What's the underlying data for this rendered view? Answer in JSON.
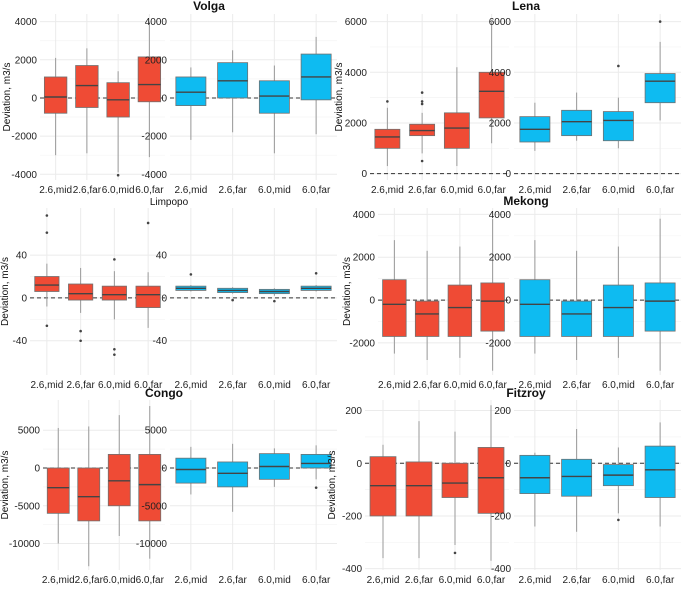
{
  "colors": {
    "rcp26": "#EF4B35",
    "rcp60": "#0EBBF1"
  },
  "chart_data": [
    {
      "type": "boxplot",
      "title": "Volga",
      "ylabel": "Deviation, m3/s",
      "color": "#EF4B35",
      "categories": [
        "2.6,mid",
        "2.6,far",
        "6.0,mid",
        "6.0,far"
      ],
      "ylim": [
        -4300,
        4400
      ],
      "yticks": [
        -4000,
        -2000,
        0,
        2000,
        4000
      ],
      "ytick_labels": [
        "-4000",
        "-2000",
        "0",
        "2000",
        "4000"
      ],
      "boxes": [
        {
          "min": -3000,
          "q1": -800,
          "median": 50,
          "q3": 1100,
          "max": 2100,
          "outliers": []
        },
        {
          "min": -2900,
          "q1": -500,
          "median": 650,
          "q3": 1700,
          "max": 2600,
          "outliers": []
        },
        {
          "min": -3900,
          "q1": -1000,
          "median": -100,
          "q3": 800,
          "max": 1400,
          "outliers": [
            -4050
          ]
        },
        {
          "min": -3100,
          "q1": -200,
          "median": 700,
          "q3": 2150,
          "max": 4000,
          "outliers": []
        }
      ]
    },
    {
      "type": "boxplot",
      "title": "",
      "ylabel": "",
      "color": "#0EBBF1",
      "categories": [
        "2.6,mid",
        "2.6,far",
        "6.0,mid",
        "6.0,far"
      ],
      "ylim": [
        -4300,
        4400
      ],
      "yticks": [
        -4000,
        -2000,
        0,
        2000,
        4000
      ],
      "ytick_labels": [
        "-4000",
        "-2000",
        "0",
        "2000",
        "4000"
      ],
      "boxes": [
        {
          "min": -2200,
          "q1": -400,
          "median": 300,
          "q3": 1100,
          "max": 1600,
          "outliers": []
        },
        {
          "min": -1800,
          "q1": 0,
          "median": 900,
          "q3": 1850,
          "max": 2500,
          "outliers": []
        },
        {
          "min": -2900,
          "q1": -800,
          "median": 100,
          "q3": 900,
          "max": 1700,
          "outliers": []
        },
        {
          "min": -1900,
          "q1": -100,
          "median": 1100,
          "q3": 2300,
          "max": 3200,
          "outliers": []
        }
      ]
    },
    {
      "type": "boxplot",
      "title": "Lena",
      "ylabel": "Deviation, m3/s",
      "color": "#EF4B35",
      "categories": [
        "2.6,mid",
        "2.6,far",
        "6.0,mid",
        "6.0,far"
      ],
      "ylim": [
        -250,
        6300
      ],
      "yticks": [
        0,
        2000,
        4000,
        6000
      ],
      "ytick_labels": [
        "0",
        "2000",
        "4000",
        "6000"
      ],
      "boxes": [
        {
          "min": 300,
          "q1": 1000,
          "median": 1450,
          "q3": 1750,
          "max": 2600,
          "outliers": [
            2850
          ]
        },
        {
          "min": 800,
          "q1": 1500,
          "median": 1700,
          "q3": 1950,
          "max": 2400,
          "outliers": [
            2750,
            2850,
            3200,
            500
          ]
        },
        {
          "min": 300,
          "q1": 1000,
          "median": 1800,
          "q3": 2400,
          "max": 4200,
          "outliers": []
        },
        {
          "min": 1200,
          "q1": 2200,
          "median": 3250,
          "q3": 4000,
          "max": 6000,
          "outliers": []
        }
      ]
    },
    {
      "type": "boxplot",
      "title": "",
      "ylabel": "",
      "color": "#0EBBF1",
      "categories": [
        "2.6,mid",
        "2.6,far",
        "6.0,mid",
        "6.0,far"
      ],
      "ylim": [
        -250,
        6300
      ],
      "yticks": [
        0,
        2000,
        4000,
        6000
      ],
      "ytick_labels": [
        "0",
        "2000",
        "4000",
        "6000"
      ],
      "boxes": [
        {
          "min": 900,
          "q1": 1250,
          "median": 1750,
          "q3": 2250,
          "max": 2800,
          "outliers": []
        },
        {
          "min": 1300,
          "q1": 1500,
          "median": 2050,
          "q3": 2500,
          "max": 3200,
          "outliers": []
        },
        {
          "min": 1000,
          "q1": 1300,
          "median": 2100,
          "q3": 2450,
          "max": 3000,
          "outliers": [
            4250
          ]
        },
        {
          "min": 2100,
          "q1": 2800,
          "median": 3650,
          "q3": 3950,
          "max": 5200,
          "outliers": [
            6000
          ]
        }
      ]
    },
    {
      "type": "boxplot",
      "title": "Limpopo",
      "ylabel": "Deviation, m3/s",
      "color": "#EF4B35",
      "categories": [
        "2.6,mid",
        "2.6,far",
        "6.0,mid",
        "6.0,far"
      ],
      "ylim": [
        -72,
        84
      ],
      "yticks": [
        -40,
        0,
        40
      ],
      "ytick_labels": [
        "-40",
        "0",
        "40"
      ],
      "boxes": [
        {
          "min": -8,
          "q1": 6,
          "median": 12,
          "q3": 20,
          "max": 32,
          "outliers": [
            77,
            61,
            -26
          ]
        },
        {
          "min": -14,
          "q1": -2,
          "median": 4,
          "q3": 13,
          "max": 28,
          "outliers": [
            -31,
            -40
          ]
        },
        {
          "min": -20,
          "q1": -2,
          "median": 3,
          "q3": 11,
          "max": 25,
          "outliers": [
            36,
            -48,
            -53
          ]
        },
        {
          "min": -28,
          "q1": -9,
          "median": 3,
          "q3": 11,
          "max": 24,
          "outliers": [
            70
          ]
        }
      ]
    },
    {
      "type": "boxplot",
      "title": "",
      "ylabel": "",
      "color": "#0EBBF1",
      "categories": [
        "2.6,mid",
        "2.6,far",
        "6.0,mid",
        "6.0,far"
      ],
      "ylim": [
        -72,
        84
      ],
      "yticks": [
        -40,
        0,
        40
      ],
      "ytick_labels": [
        "-40",
        "0",
        "40"
      ],
      "boxes": [
        {
          "min": 6,
          "q1": 7,
          "median": 9,
          "q3": 11,
          "max": 12,
          "outliers": [
            22
          ]
        },
        {
          "min": 4,
          "q1": 5,
          "median": 7,
          "q3": 9,
          "max": 10,
          "outliers": [
            -2
          ]
        },
        {
          "min": 2,
          "q1": 4,
          "median": 6,
          "q3": 8,
          "max": 9,
          "outliers": [
            -3
          ]
        },
        {
          "min": 6,
          "q1": 7,
          "median": 9,
          "q3": 11,
          "max": 12,
          "outliers": [
            23
          ]
        }
      ]
    },
    {
      "type": "boxplot",
      "title": "Mekong",
      "ylabel": "Deviation, m3/s",
      "color": "#EF4B35",
      "categories": [
        "2.6,mid",
        "2.6,far",
        "6.0,mid",
        "6.0,far"
      ],
      "ylim": [
        -3500,
        4300
      ],
      "yticks": [
        -2000,
        0,
        2000,
        4000
      ],
      "ytick_labels": [
        "-2000",
        "0",
        "2000",
        "4000"
      ],
      "boxes": [
        {
          "min": -2500,
          "q1": -1700,
          "median": -200,
          "q3": 950,
          "max": 2800,
          "outliers": []
        },
        {
          "min": -2800,
          "q1": -1700,
          "median": -650,
          "q3": -50,
          "max": 2300,
          "outliers": []
        },
        {
          "min": -2700,
          "q1": -1700,
          "median": -350,
          "q3": 700,
          "max": 2500,
          "outliers": []
        },
        {
          "min": -3300,
          "q1": -1450,
          "median": -50,
          "q3": 800,
          "max": 3800,
          "outliers": []
        }
      ]
    },
    {
      "type": "boxplot",
      "title": "",
      "ylabel": "",
      "color": "#0EBBF1",
      "categories": [
        "2.6,mid",
        "2.6,far",
        "6.0,mid",
        "6.0,far"
      ],
      "ylim": [
        -3500,
        4300
      ],
      "yticks": [
        -2000,
        0,
        2000,
        4000
      ],
      "ytick_labels": [
        "-2000",
        "0",
        "2000",
        "4000"
      ],
      "boxes": [
        {
          "min": -2500,
          "q1": -1700,
          "median": -200,
          "q3": 950,
          "max": 2800,
          "outliers": []
        },
        {
          "min": -2800,
          "q1": -1700,
          "median": -650,
          "q3": -50,
          "max": 2300,
          "outliers": []
        },
        {
          "min": -2700,
          "q1": -1700,
          "median": -350,
          "q3": 700,
          "max": 2500,
          "outliers": []
        },
        {
          "min": -3300,
          "q1": -1450,
          "median": -50,
          "q3": 800,
          "max": 3800,
          "outliers": []
        }
      ]
    },
    {
      "type": "boxplot",
      "title": "Congo",
      "ylabel": "Deviation, m3/s",
      "color": "#EF4B35",
      "categories": [
        "2.6,mid",
        "2.6,far",
        "6.0,mid",
        "6.0,far"
      ],
      "ylim": [
        -13500,
        9000
      ],
      "yticks": [
        -10000,
        -5000,
        0,
        5000
      ],
      "ytick_labels": [
        "-10000",
        "-5000",
        "0",
        "5000"
      ],
      "boxes": [
        {
          "min": -10000,
          "q1": -6000,
          "median": -2600,
          "q3": 0,
          "max": 5300,
          "outliers": []
        },
        {
          "min": -13000,
          "q1": -7000,
          "median": -3800,
          "q3": 0,
          "max": 5500,
          "outliers": []
        },
        {
          "min": -9000,
          "q1": -5000,
          "median": -1700,
          "q3": 1800,
          "max": 7000,
          "outliers": []
        },
        {
          "min": -12000,
          "q1": -7000,
          "median": -2200,
          "q3": 1800,
          "max": 8200,
          "outliers": []
        }
      ]
    },
    {
      "type": "boxplot",
      "title": "",
      "ylabel": "",
      "color": "#0EBBF1",
      "categories": [
        "2.6,mid",
        "2.6,far",
        "6.0,mid",
        "6.0,far"
      ],
      "ylim": [
        -13500,
        9000
      ],
      "yticks": [
        -10000,
        -5000,
        0,
        5000
      ],
      "ytick_labels": [
        "-10000",
        "-5000",
        "0",
        "5000"
      ],
      "boxes": [
        {
          "min": -3500,
          "q1": -2000,
          "median": -200,
          "q3": 1300,
          "max": 2800,
          "outliers": []
        },
        {
          "min": -5800,
          "q1": -2500,
          "median": -700,
          "q3": 800,
          "max": 3200,
          "outliers": []
        },
        {
          "min": -2500,
          "q1": -1500,
          "median": 200,
          "q3": 1900,
          "max": 2600,
          "outliers": []
        },
        {
          "min": -1500,
          "q1": 0,
          "median": 600,
          "q3": 1800,
          "max": 3000,
          "outliers": [
            -2600
          ]
        }
      ]
    },
    {
      "type": "boxplot",
      "title": "Fitzroy",
      "ylabel": "Deviation, m3/s",
      "color": "#EF4B35",
      "categories": [
        "2.6,mid",
        "2.6,far",
        "6.0,mid",
        "6.0,far"
      ],
      "ylim": [
        -405,
        240
      ],
      "yticks": [
        -400,
        -200,
        0,
        200
      ],
      "ytick_labels": [
        "-400",
        "-200",
        "0",
        "200"
      ],
      "boxes": [
        {
          "min": -360,
          "q1": -200,
          "median": -85,
          "q3": 25,
          "max": 70,
          "outliers": []
        },
        {
          "min": -360,
          "q1": -200,
          "median": -85,
          "q3": 5,
          "max": 160,
          "outliers": []
        },
        {
          "min": -310,
          "q1": -130,
          "median": -75,
          "q3": 0,
          "max": 120,
          "outliers": [
            -340
          ]
        },
        {
          "min": -370,
          "q1": -190,
          "median": -55,
          "q3": 60,
          "max": 220,
          "outliers": []
        }
      ]
    },
    {
      "type": "boxplot",
      "title": "",
      "ylabel": "",
      "color": "#0EBBF1",
      "categories": [
        "2.6,mid",
        "2.6,far",
        "6.0,mid",
        "6.0,far"
      ],
      "ylim": [
        -405,
        240
      ],
      "yticks": [
        -400,
        -200,
        0,
        200
      ],
      "ytick_labels": [
        "-400",
        "-200",
        "0",
        "200"
      ],
      "boxes": [
        {
          "min": -240,
          "q1": -115,
          "median": -55,
          "q3": 30,
          "max": 40,
          "outliers": []
        },
        {
          "min": -260,
          "q1": -125,
          "median": -50,
          "q3": 15,
          "max": 130,
          "outliers": []
        },
        {
          "min": -190,
          "q1": -85,
          "median": -45,
          "q3": -5,
          "max": 60,
          "outliers": [
            -215
          ]
        },
        {
          "min": -240,
          "q1": -130,
          "median": -25,
          "q3": 65,
          "max": 155,
          "outliers": []
        }
      ]
    }
  ]
}
